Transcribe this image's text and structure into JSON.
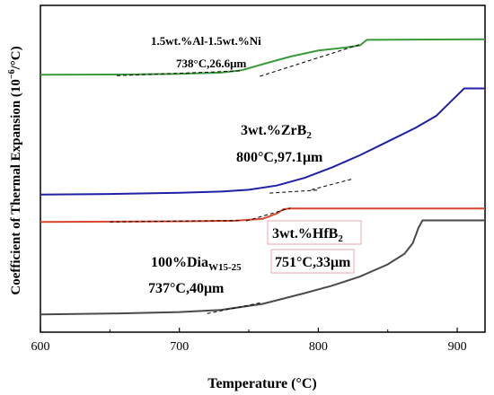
{
  "chart_data": {
    "type": "line",
    "xlabel": "Temperature (°C)",
    "ylabel": "Coefficient of Thermal Expansion (10",
    "ylabel_sup": "−6",
    "ylabel_unit": "/°C)",
    "xlim": [
      600,
      920
    ],
    "ylim": [
      0,
      100
    ],
    "xticks": [
      600,
      700,
      800,
      900
    ],
    "xtick_labels": [
      "600",
      "700",
      "800",
      "900"
    ],
    "grid": false,
    "series": [
      {
        "name": "1.5wt.%Al-1.5wt.%Ni",
        "color": "#3a9a3a",
        "x": [
          600,
          660,
          700,
          730,
          745,
          760,
          780,
          800,
          820,
          830,
          835,
          920
        ],
        "y": [
          79.5,
          79.6,
          79.8,
          80.2,
          81.0,
          83.0,
          85.5,
          87.5,
          88.5,
          89.2,
          91.0,
          91.2
        ]
      },
      {
        "name": "3wt.%ZrB2",
        "color": "#1f1fa8",
        "x": [
          600,
          650,
          700,
          730,
          750,
          770,
          790,
          810,
          830,
          850,
          870,
          885,
          895,
          905,
          920
        ],
        "y": [
          40.0,
          40.2,
          40.6,
          41.0,
          41.6,
          43.0,
          45.5,
          49.0,
          53.0,
          57.5,
          62.0,
          66.0,
          70.5,
          75.0,
          75.0
        ]
      },
      {
        "name": "3wt.%HfB2",
        "color": "#d9452b",
        "x": [
          600,
          650,
          700,
          740,
          760,
          770,
          775,
          780,
          920
        ],
        "y": [
          31.0,
          31.1,
          31.2,
          31.4,
          32.0,
          33.8,
          35.2,
          35.4,
          35.4
        ]
      },
      {
        "name": "100%Dia",
        "name_sub": "W15-25",
        "color": "#4a4a4a",
        "x": [
          600,
          650,
          700,
          730,
          760,
          790,
          810,
          830,
          850,
          862,
          868,
          872,
          875,
          920
        ],
        "y": [
          0.5,
          0.8,
          1.3,
          2.0,
          4.0,
          7.5,
          10.0,
          13.0,
          17.0,
          20.5,
          24.0,
          29.0,
          31.5,
          31.5
        ]
      }
    ],
    "annotations": [
      {
        "text": "1.5wt.%Al-1.5wt.%Ni",
        "color": "#3a9a3a"
      },
      {
        "text": "738°C,26.6μm",
        "color": "#3a9a3a"
      },
      {
        "text_main": "3wt.%ZrB",
        "text_sub": "2",
        "color": "#1f1fa8"
      },
      {
        "text": "800°C,97.1μm",
        "color": "#1f1fa8"
      },
      {
        "text_main": "3wt.%HfB",
        "text_sub": "2",
        "color": "#b52e22"
      },
      {
        "text": "751°C,33μm",
        "color": "#b52e22"
      },
      {
        "text_main": "100%Dia",
        "text_sub": "W15-25",
        "color": "#000000"
      },
      {
        "text": "737°C,40μm",
        "color": "#000000"
      }
    ],
    "tangent_lines": [
      {
        "x1": 655,
        "y1": 79.2,
        "x2": 745,
        "y2": 80.8
      },
      {
        "x1": 758,
        "y1": 79.0,
        "x2": 830,
        "y2": 89.5
      },
      {
        "x1": 765,
        "y1": 40.5,
        "x2": 800,
        "y2": 41.5
      },
      {
        "x1": 795,
        "y1": 41.6,
        "x2": 825,
        "y2": 45.2
      },
      {
        "x1": 650,
        "y1": 31.0,
        "x2": 745,
        "y2": 31.5
      },
      {
        "x1": 748,
        "y1": 31.3,
        "x2": 780,
        "y2": 35.6
      },
      {
        "x1": 720,
        "y1": 0.8,
        "x2": 760,
        "y2": 4.5
      }
    ]
  }
}
